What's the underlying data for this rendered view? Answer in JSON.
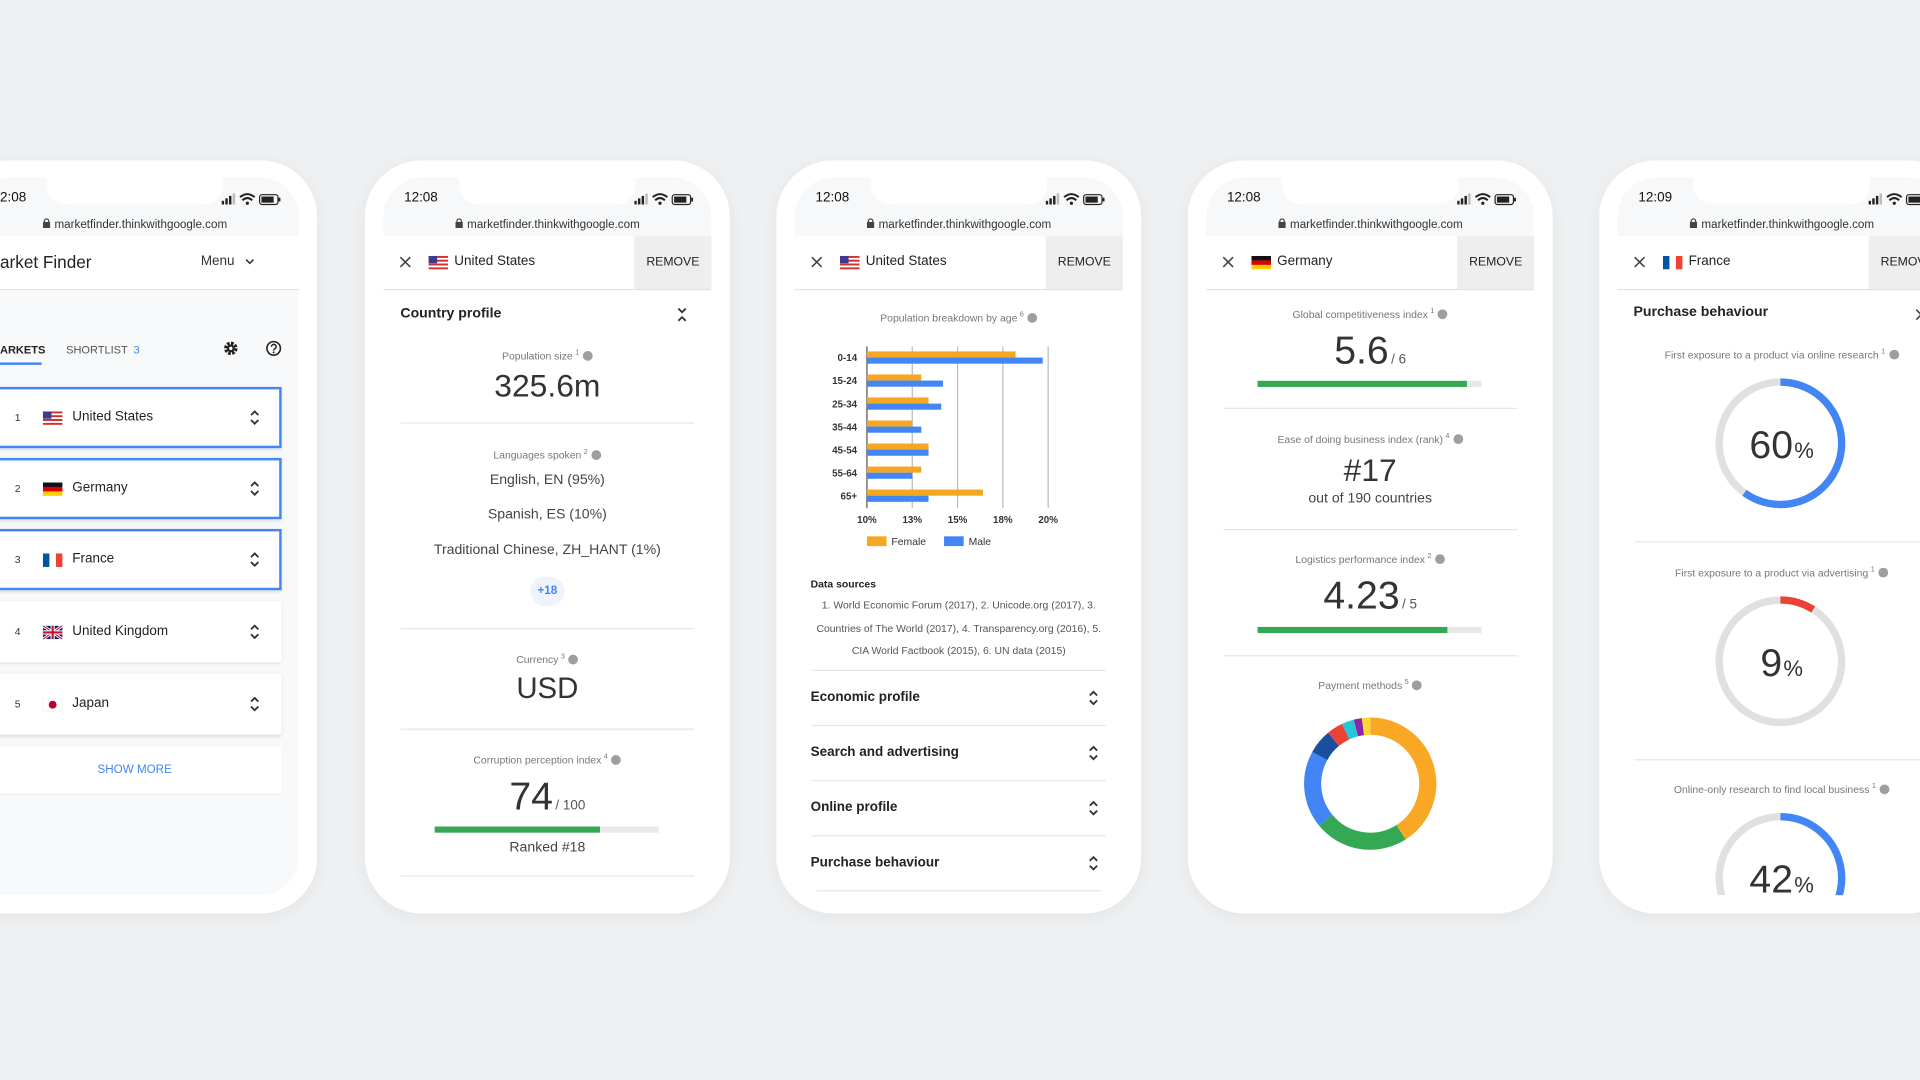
{
  "phones": [
    {
      "time": "2:08",
      "url": "marketfinder.thinkwithgoogle.com",
      "app_title": "arket Finder",
      "menu": "Menu",
      "tabs": {
        "markets": "ARKETS",
        "shortlist": "SHORTLIST",
        "shortlist_count": 3
      },
      "markets": [
        {
          "rank": 1,
          "name": "United States"
        },
        {
          "rank": 2,
          "name": "Germany"
        },
        {
          "rank": 3,
          "name": "France"
        },
        {
          "rank": 4,
          "name": "United Kingdom"
        },
        {
          "rank": 5,
          "name": "Japan"
        }
      ],
      "show_more": "SHOW MORE"
    },
    {
      "time": "12:08",
      "url": "marketfinder.thinkwithgoogle.com",
      "country": "United States",
      "remove": "REMOVE",
      "section": "Country profile",
      "population": {
        "label": "Population size",
        "note": 1,
        "value": "325.6m"
      },
      "languages": {
        "label": "Languages spoken",
        "note": 2,
        "items": [
          "English, EN (95%)",
          "Spanish, ES (10%)",
          "Traditional Chinese, ZH_HANT (1%)"
        ],
        "more": "+18"
      },
      "currency": {
        "label": "Currency",
        "note": 3,
        "value": "USD"
      },
      "corruption": {
        "label": "Corruption perception index",
        "note": 4,
        "value": 74,
        "scale_label": "/ 100",
        "max": 100,
        "rank": "Ranked #18"
      }
    },
    {
      "time": "12:08",
      "url": "marketfinder.thinkwithgoogle.com",
      "country": "United States",
      "remove": "REMOVE",
      "chart": {
        "type": "bar",
        "title": "Population breakdown by age",
        "note": 6,
        "categories": [
          "0-14",
          "15-24",
          "25-34",
          "35-44",
          "45-54",
          "55-64",
          "65+"
        ],
        "series": [
          {
            "name": "Female",
            "color": "#f5a623",
            "values": [
              18.2,
              13.0,
              13.4,
              12.5,
              13.4,
              13.0,
              16.4
            ]
          },
          {
            "name": "Male",
            "color": "#4285f4",
            "values": [
              19.7,
              14.2,
              14.1,
              13.0,
              13.4,
              12.5,
              13.4
            ]
          }
        ],
        "xlim": [
          10,
          20
        ],
        "xticks": [
          {
            "value": 10,
            "label": "10%"
          },
          {
            "value": 12.5,
            "label": "13%"
          },
          {
            "value": 15,
            "label": "15%"
          },
          {
            "value": 17.5,
            "label": "18%"
          },
          {
            "value": 20,
            "label": "20%"
          }
        ]
      },
      "sources": {
        "title": "Data sources",
        "text": "1. World Economic Forum (2017), 2. Unicode.org (2017), 3. Countries of The World (2017), 4. Transparency.org (2016), 5. CIA World Factbook (2015), 6. UN data (2015)"
      },
      "sections": [
        "Economic profile",
        "Search and advertising",
        "Online profile",
        "Purchase behaviour"
      ]
    },
    {
      "time": "12:08",
      "url": "marketfinder.thinkwithgoogle.com",
      "country": "Germany",
      "remove": "REMOVE",
      "competitiveness": {
        "label": "Global competitiveness index",
        "note": 1,
        "value": 5.6,
        "scale_label": "/ 6",
        "max": 6
      },
      "ease": {
        "label": "Ease of doing business index (rank)",
        "note": 4,
        "value": "#17",
        "sub": "out of 190 countries"
      },
      "logistics": {
        "label": "Logistics performance index",
        "note": 2,
        "value": 4.23,
        "scale_label": "/ 5",
        "max": 5
      },
      "payment": {
        "label": "Payment methods",
        "note": 5,
        "segments": [
          {
            "color": "#f9a825",
            "value": 41
          },
          {
            "color": "#34a853",
            "value": 23
          },
          {
            "color": "#4285f4",
            "value": 19
          },
          {
            "color": "#1a4fa0",
            "value": 6
          },
          {
            "color": "#ea4335",
            "value": 4
          },
          {
            "color": "#26c6da",
            "value": 3
          },
          {
            "color": "#8e24aa",
            "value": 2
          },
          {
            "color": "#fdd835",
            "value": 2
          }
        ]
      }
    },
    {
      "time": "12:09",
      "url": "marketfinder.thinkwithgoogle.com",
      "country": "France",
      "remove": "REMOVE",
      "section": "Purchase behaviour",
      "stats": [
        {
          "label": "First exposure to a product via online research",
          "note": 1,
          "value": 60,
          "unit": "%",
          "color": "#4285f4"
        },
        {
          "label": "First exposure to a product via advertising",
          "note": 1,
          "value": 9,
          "unit": "%",
          "color": "#ea4335"
        },
        {
          "label": "Online-only research to find local business",
          "note": 1,
          "value": 42,
          "unit": "%",
          "color": "#4285f4"
        }
      ]
    }
  ]
}
